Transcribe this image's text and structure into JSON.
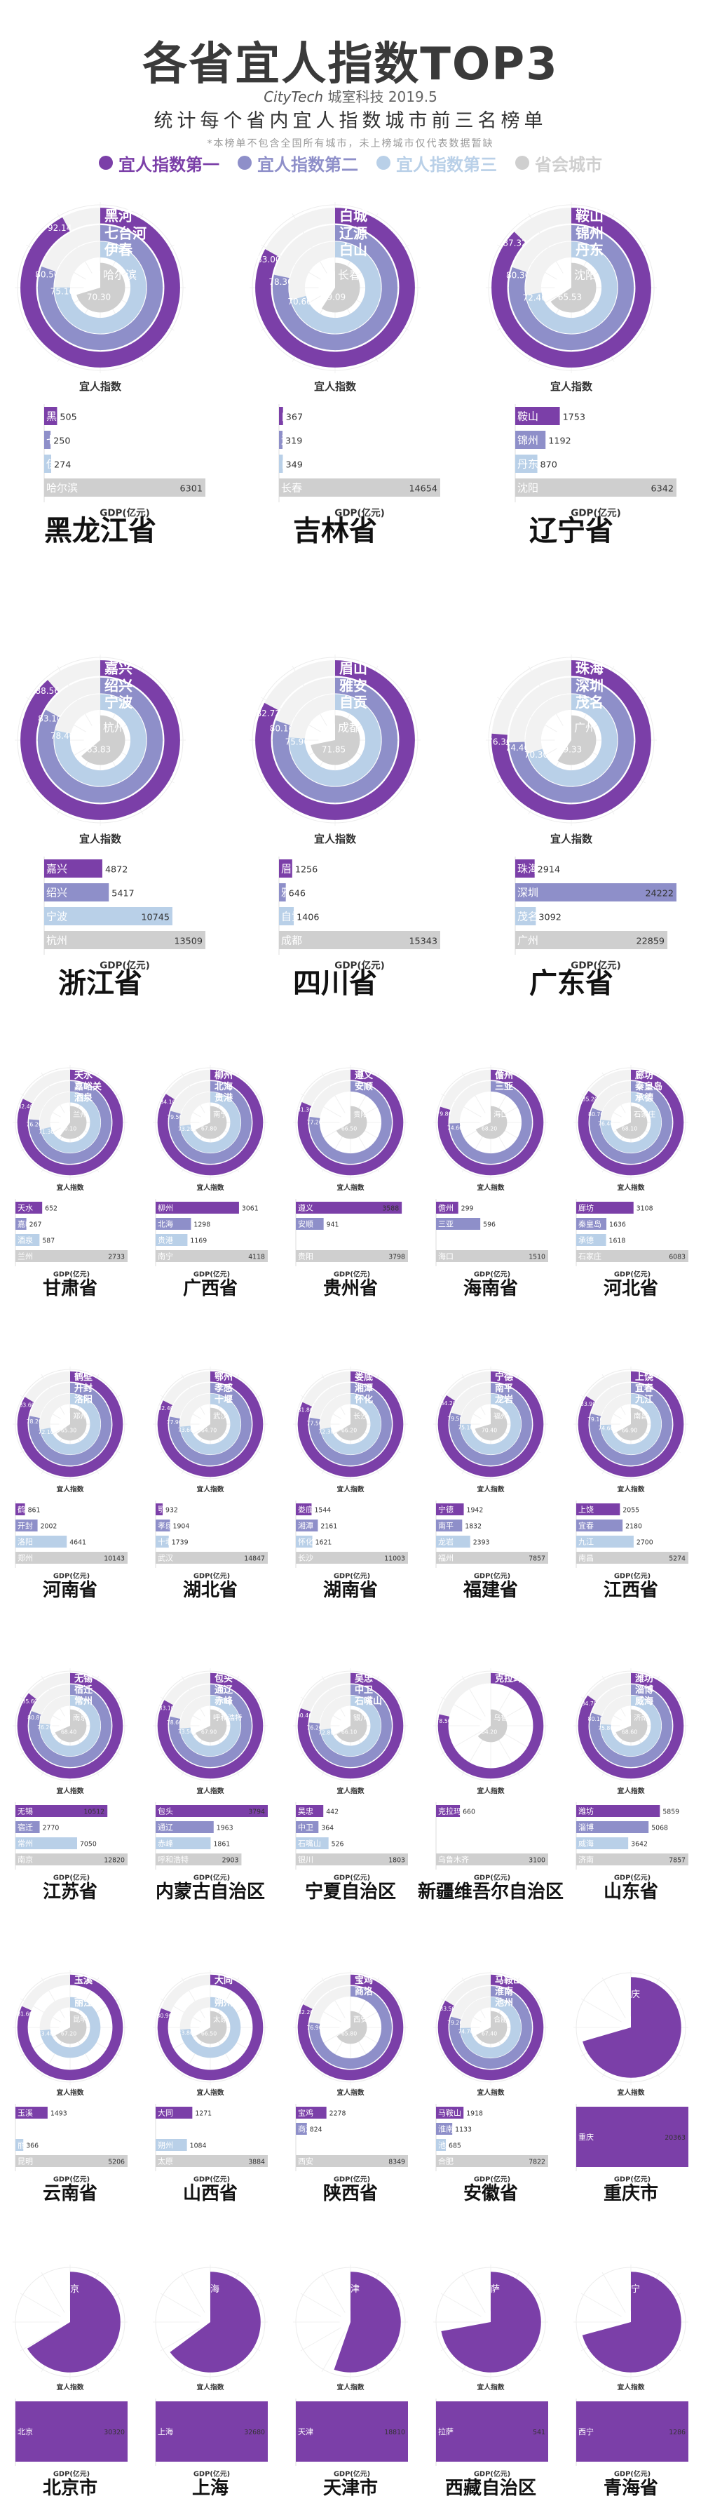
{
  "header": {
    "title": "各省宜人指数TOP3",
    "brand_logo": "CityTech",
    "brand_text": "城室科技 2019.5",
    "subtitle": "统计每个省内宜人指数城市前三名榜单",
    "note": "*本榜单不包含全国所有城市，未上榜城市仅代表数据暂缺"
  },
  "legend": [
    {
      "label": "宜人指数第一",
      "color": "#7b3fa8"
    },
    {
      "label": "宜人指数第二",
      "color": "#8e8fc9"
    },
    {
      "label": "宜人指数第三",
      "color": "#b9d0e8"
    },
    {
      "label": "省会城市",
      "color": "#cfcfcf"
    }
  ],
  "colors": [
    "#7b3fa8",
    "#8e8fc9",
    "#b9d0e8",
    "#cfcfcf"
  ],
  "axis_labels": {
    "ring": "宜人指数",
    "bar": "GDP(亿元)"
  },
  "chart_data": [
    {
      "type": "bar",
      "province": "黑龙江省",
      "cities": [
        "黑河",
        "七台河",
        "伊春",
        "哈尔滨"
      ],
      "index": [
        92.14,
        80.5,
        75.1,
        70.3
      ],
      "gdp": [
        505,
        250,
        274,
        6301
      ]
    },
    {
      "type": "bar",
      "province": "吉林省",
      "cities": [
        "白城",
        "辽源",
        "白山",
        "长春"
      ],
      "index": [
        83.0,
        78.3,
        70.6,
        59.09
      ],
      "gdp": [
        367,
        319,
        349,
        14654
      ]
    },
    {
      "type": "bar",
      "province": "辽宁省",
      "cities": [
        "鞍山",
        "锦州",
        "丹东",
        "沈阳"
      ],
      "index": [
        87.32,
        80.3,
        72.4,
        65.53
      ],
      "gdp": [
        1753,
        1192,
        870,
        6342
      ]
    },
    {
      "type": "bar",
      "province": "浙江省",
      "cities": [
        "嘉兴",
        "绍兴",
        "宁波",
        "杭州"
      ],
      "index": [
        88.56,
        83.1,
        78.4,
        63.83
      ],
      "gdp": [
        4872,
        5417,
        10745,
        13509
      ]
    },
    {
      "type": "bar",
      "province": "四川省",
      "cities": [
        "眉山",
        "雅安",
        "自贡",
        "成都"
      ],
      "index": [
        82.72,
        80.1,
        75.9,
        71.85
      ],
      "gdp": [
        1256,
        646,
        1406,
        15343
      ]
    },
    {
      "type": "bar",
      "province": "广东省",
      "cities": [
        "珠海",
        "深圳",
        "茂名",
        "广州"
      ],
      "index": [
        76.3,
        74.4,
        70.3,
        59.33
      ],
      "gdp": [
        2914,
        24222,
        3092,
        22859
      ]
    },
    {
      "type": "bar",
      "province": "甘肃省",
      "cities": [
        "天水",
        "嘉峪关",
        "酒泉",
        "兰州"
      ],
      "index": [
        82.4,
        76.2,
        71.3,
        60.1
      ],
      "gdp": [
        652,
        267,
        587,
        2733
      ]
    },
    {
      "type": "bar",
      "province": "广西省",
      "cities": [
        "柳州",
        "北海",
        "贵港",
        "南宁"
      ],
      "index": [
        84.1,
        79.5,
        73.2,
        67.8
      ],
      "gdp": [
        3061,
        1298,
        1169,
        4118
      ]
    },
    {
      "type": "bar",
      "province": "贵州省",
      "cities": [
        "遵义",
        "安顺",
        "",
        "贵阳"
      ],
      "index": [
        81.3,
        77.2,
        0,
        66.5
      ],
      "gdp": [
        3588,
        941,
        0,
        3798
      ]
    },
    {
      "type": "bar",
      "province": "海南省",
      "cities": [
        "儋州",
        "三亚",
        "",
        "海口"
      ],
      "index": [
        79.8,
        74.6,
        0,
        68.2
      ],
      "gdp": [
        299,
        596,
        0,
        1510
      ]
    },
    {
      "type": "bar",
      "province": "河北省",
      "cities": [
        "廊坊",
        "秦皇岛",
        "承德",
        "石家庄"
      ],
      "index": [
        85.2,
        80.7,
        76.4,
        68.1
      ],
      "gdp": [
        3108,
        1636,
        1618,
        6083
      ]
    },
    {
      "type": "bar",
      "province": "河南省",
      "cities": [
        "鹤壁",
        "开封",
        "洛阳",
        "郑州"
      ],
      "index": [
        83.6,
        78.2,
        72.1,
        65.3
      ],
      "gdp": [
        861,
        2002,
        4641,
        10143
      ]
    },
    {
      "type": "bar",
      "province": "湖北省",
      "cities": [
        "鄂州",
        "孝感",
        "十堰",
        "武汉"
      ],
      "index": [
        82.4,
        77.9,
        73.6,
        64.7
      ],
      "gdp": [
        932,
        1904,
        1739,
        14847
      ]
    },
    {
      "type": "bar",
      "province": "湖南省",
      "cities": [
        "娄底",
        "湘潭",
        "怀化",
        "长沙"
      ],
      "index": [
        81.8,
        77.5,
        72.3,
        66.2
      ],
      "gdp": [
        1544,
        2161,
        1621,
        11003
      ]
    },
    {
      "type": "bar",
      "province": "福建省",
      "cities": [
        "宁德",
        "南平",
        "龙岩",
        "福州"
      ],
      "index": [
        84.2,
        79.5,
        75.1,
        70.4
      ],
      "gdp": [
        1942,
        1832,
        2393,
        7857
      ]
    },
    {
      "type": "bar",
      "province": "江西省",
      "cities": [
        "上饶",
        "宜春",
        "九江",
        "南昌"
      ],
      "index": [
        83.9,
        79.1,
        74.6,
        66.9
      ],
      "gdp": [
        2055,
        2180,
        2700,
        5274
      ]
    },
    {
      "type": "bar",
      "province": "江苏省",
      "cities": [
        "无锡",
        "宿迁",
        "常州",
        "南京"
      ],
      "index": [
        85.6,
        80.8,
        76.2,
        68.4
      ],
      "gdp": [
        10512,
        2770,
        7050,
        12820
      ]
    },
    {
      "type": "bar",
      "province": "内蒙古自治区",
      "cities": [
        "包头",
        "通辽",
        "赤峰",
        "呼和浩特"
      ],
      "index": [
        83.1,
        78.6,
        73.5,
        67.9
      ],
      "gdp": [
        3794,
        1963,
        1861,
        2903
      ]
    },
    {
      "type": "bar",
      "province": "宁夏自治区",
      "cities": [
        "吴忠",
        "中卫",
        "石嘴山",
        "银川"
      ],
      "index": [
        80.4,
        76.2,
        72.8,
        66.1
      ],
      "gdp": [
        442,
        364,
        526,
        1803
      ]
    },
    {
      "type": "bar",
      "province": "新疆维吾尔自治区",
      "cities": [
        "克拉玛依",
        "",
        "",
        "乌鲁木齐"
      ],
      "index": [
        78.5,
        0,
        0,
        64.2
      ],
      "gdp": [
        660,
        0,
        0,
        3100
      ]
    },
    {
      "type": "bar",
      "province": "山东省",
      "cities": [
        "潍坊",
        "淄博",
        "威海",
        "济南"
      ],
      "index": [
        84.7,
        80.1,
        75.8,
        68.6
      ],
      "gdp": [
        5859,
        5068,
        3642,
        7857
      ]
    },
    {
      "type": "bar",
      "province": "云南省",
      "cities": [
        "玉溪",
        "",
        "丽江",
        "昆明"
      ],
      "index": [
        81.6,
        0,
        73.4,
        67.2
      ],
      "gdp": [
        1493,
        0,
        366,
        5206
      ]
    },
    {
      "type": "bar",
      "province": "山西省",
      "cities": [
        "大同",
        "",
        "朔州",
        "太原"
      ],
      "index": [
        80.9,
        0,
        73.8,
        66.5
      ],
      "gdp": [
        1271,
        0,
        1084,
        3884
      ]
    },
    {
      "type": "bar",
      "province": "陕西省",
      "cities": [
        "宝鸡",
        "商洛",
        "",
        "西安"
      ],
      "index": [
        82.2,
        76.9,
        0,
        65.8
      ],
      "gdp": [
        2278,
        824,
        0,
        8349
      ]
    },
    {
      "type": "bar",
      "province": "安徽省",
      "cities": [
        "马鞍山",
        "淮南",
        "池州",
        "合肥"
      ],
      "index": [
        83.5,
        79.2,
        74.7,
        67.4
      ],
      "gdp": [
        1918,
        1133,
        685,
        7822
      ]
    },
    {
      "type": "bar",
      "province": "重庆市",
      "cities": [
        "",
        "",
        "",
        "重庆"
      ],
      "index": [
        0,
        0,
        0,
        70.5
      ],
      "gdp": [
        0,
        0,
        0,
        20363
      ]
    },
    {
      "type": "bar",
      "province": "北京市",
      "cities": [
        "",
        "",
        "",
        "北京"
      ],
      "index": [
        0,
        0,
        0,
        66.2
      ],
      "gdp": [
        0,
        0,
        0,
        30320
      ]
    },
    {
      "type": "bar",
      "province": "上海",
      "cities": [
        "",
        "",
        "",
        "上海"
      ],
      "index": [
        0,
        0,
        0,
        64.8
      ],
      "gdp": [
        0,
        0,
        0,
        32680
      ]
    },
    {
      "type": "bar",
      "province": "天津市",
      "cities": [
        "",
        "",
        "",
        "天津"
      ],
      "index": [
        0,
        0,
        0,
        55.3
      ],
      "gdp": [
        0,
        0,
        0,
        18810
      ]
    },
    {
      "type": "bar",
      "province": "西藏自治区",
      "cities": [
        "",
        "",
        "",
        "拉萨"
      ],
      "index": [
        0,
        0,
        0,
        72.1
      ],
      "gdp": [
        0,
        0,
        0,
        541
      ]
    },
    {
      "type": "bar",
      "province": "青海省",
      "cities": [
        "",
        "",
        "",
        "西宁"
      ],
      "index": [
        0,
        0,
        0,
        70.8
      ],
      "gdp": [
        0,
        0,
        0,
        1286
      ]
    }
  ]
}
